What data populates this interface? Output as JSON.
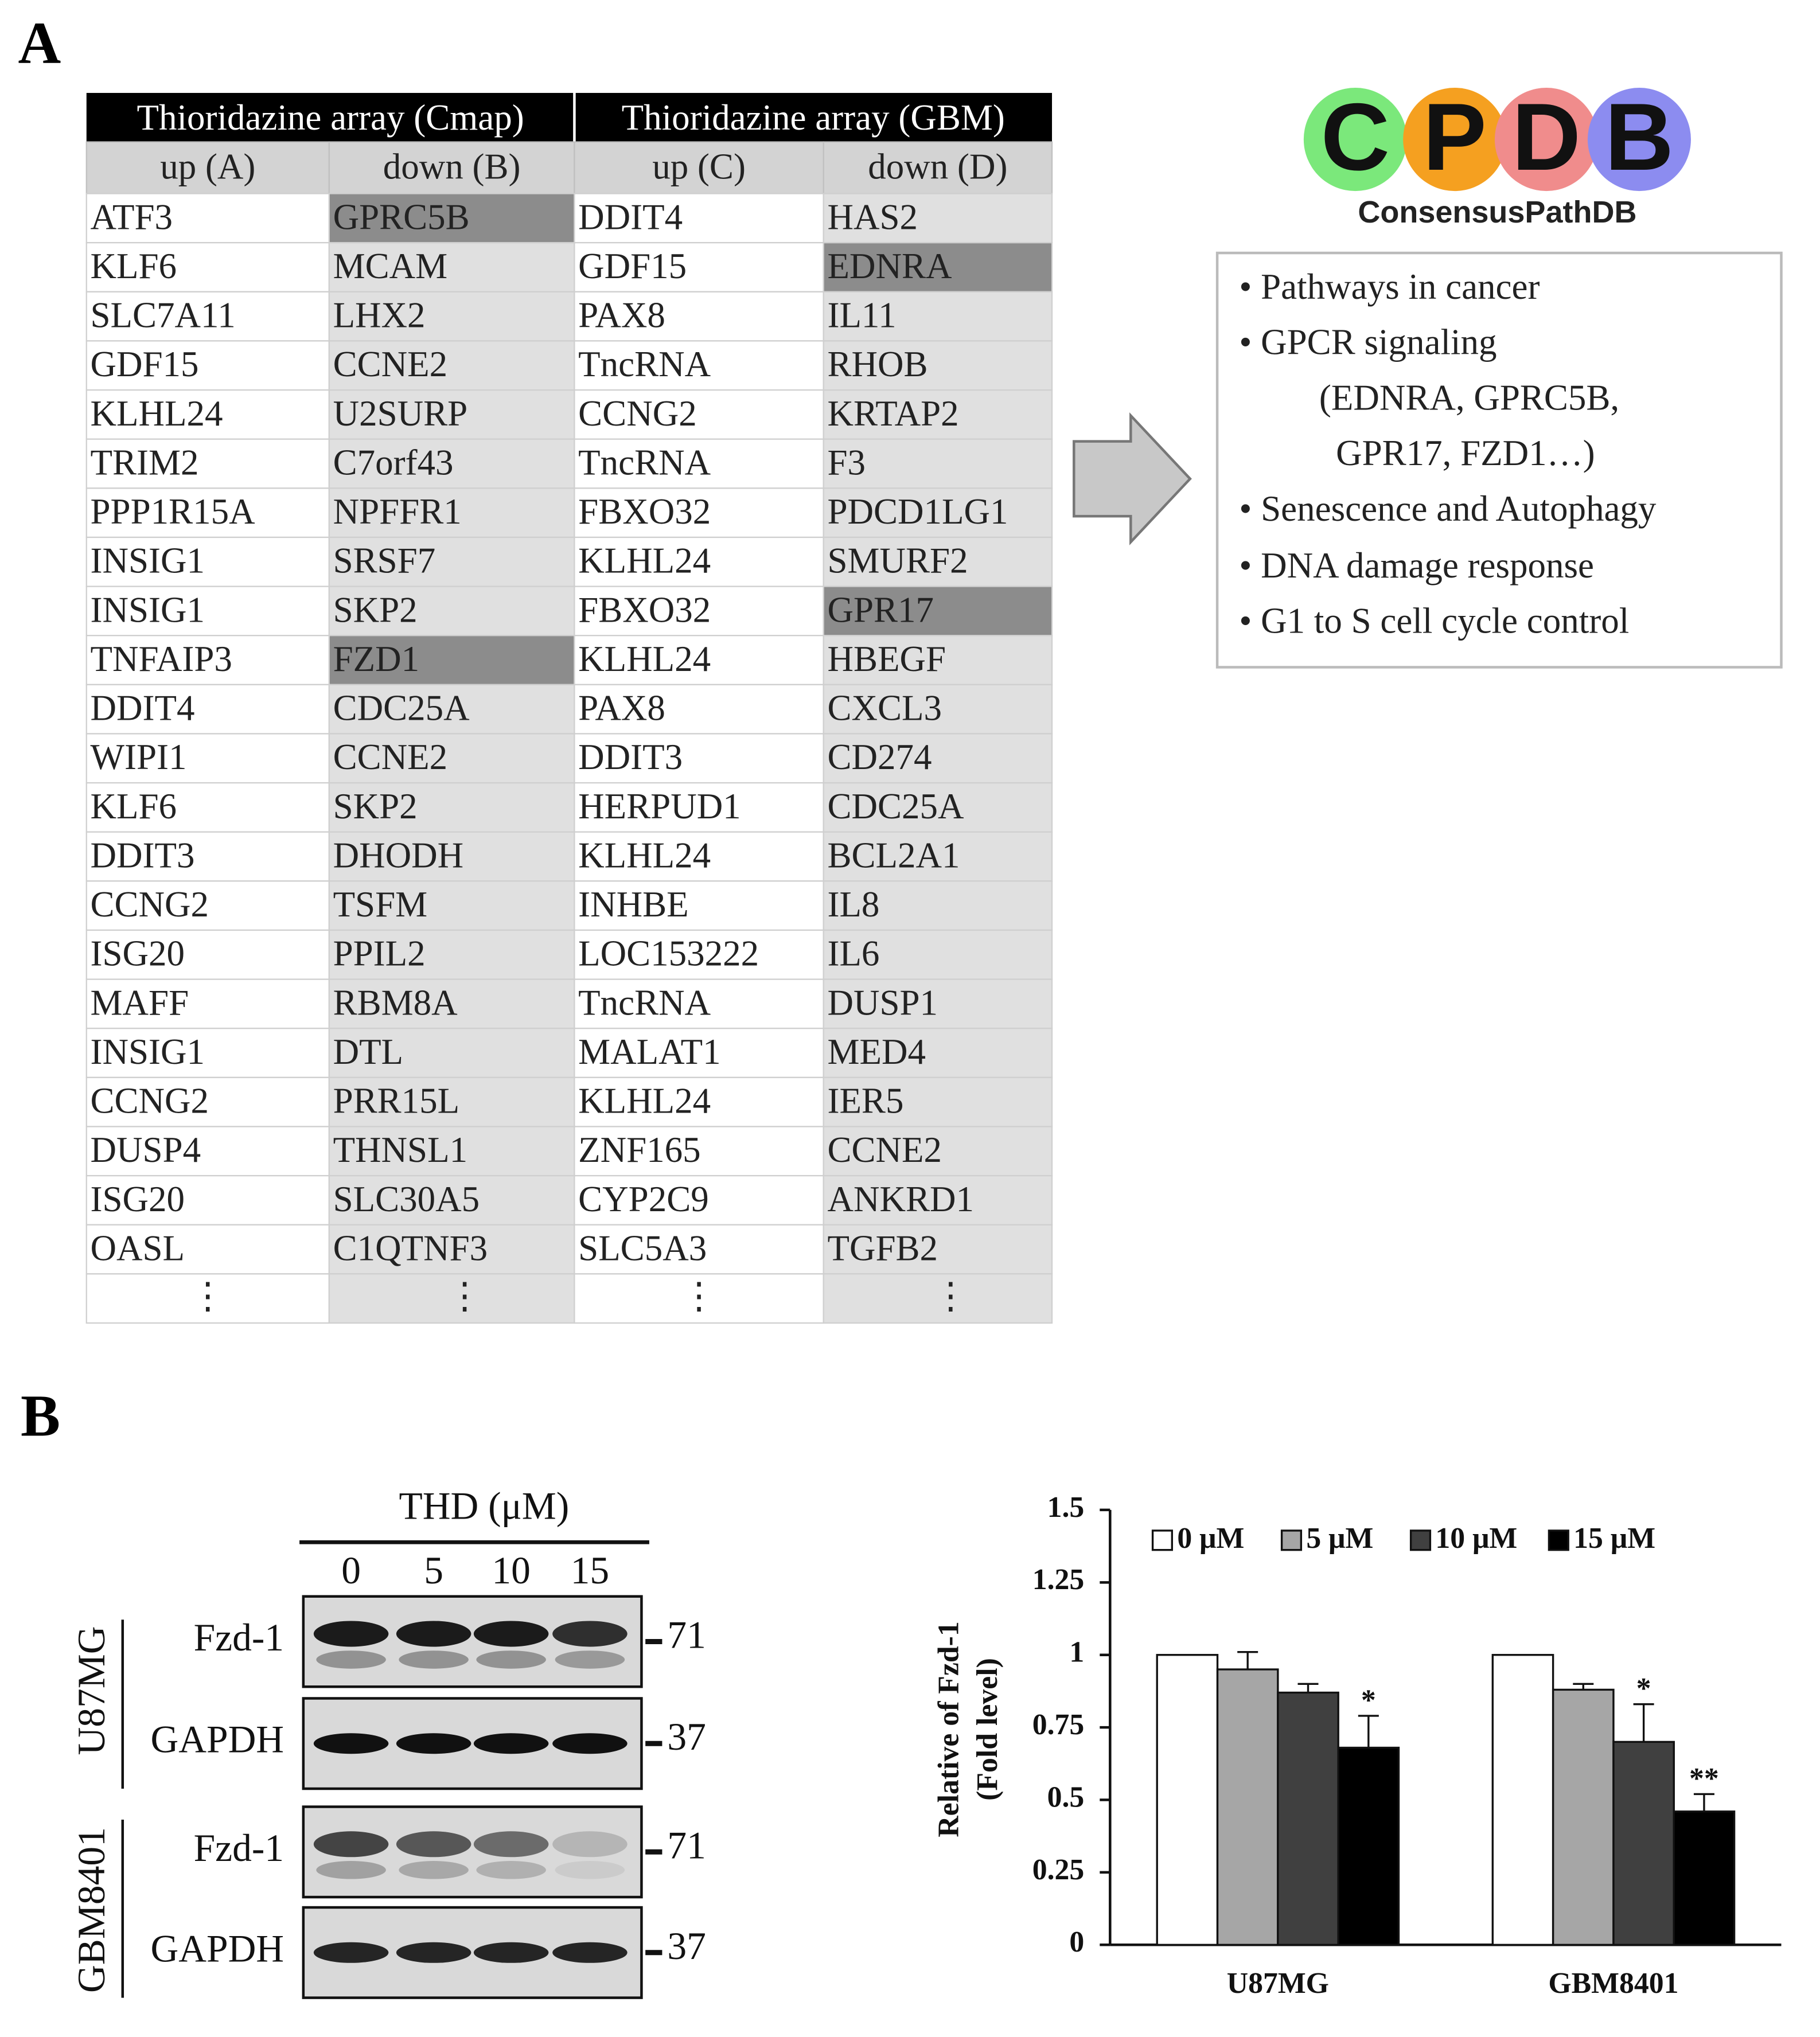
{
  "panel_a": {
    "label": "A",
    "table": {
      "headers": [
        "Thioridazine array (Cmap)",
        "Thioridazine array (GBM)"
      ],
      "more": "⋮",
      "highlight_color": "#8c8c8c",
      "columns": [
        {
          "title": "up (A)",
          "color": "#ffffff",
          "genes": [
            "ATF3",
            "KLF6",
            "SLC7A11",
            "GDF15",
            "KLHL24",
            "TRIM2",
            "PPP1R15A",
            "INSIG1",
            "INSIG1",
            "TNFAIP3",
            "DDIT4",
            "WIPI1",
            "KLF6",
            "DDIT3",
            "CCNG2",
            "ISG20",
            "MAFF",
            "INSIG1",
            "CCNG2",
            "DUSP4",
            "ISG20",
            "OASL"
          ],
          "highlighted": []
        },
        {
          "title": "down (B)",
          "color": "#e0e0e0",
          "genes": [
            "GPRC5B",
            "MCAM",
            "LHX2",
            "CCNE2",
            "U2SURP",
            "C7orf43",
            "NPFFR1",
            "SRSF7",
            "SKP2",
            "FZD1",
            "CDC25A",
            "CCNE2",
            "SKP2",
            "DHODH",
            "TSFM",
            "PPIL2",
            "RBM8A",
            "DTL",
            "PRR15L",
            "THNSL1",
            "SLC30A5",
            "C1QTNF3"
          ],
          "highlighted": [
            "GPRC5B",
            "FZD1"
          ]
        },
        {
          "title": "up (C)",
          "color": "#ffffff",
          "genes": [
            "DDIT4",
            "GDF15",
            "PAX8",
            "TncRNA",
            "CCNG2",
            "TncRNA",
            "FBXO32",
            "KLHL24",
            "FBXO32",
            "KLHL24",
            "PAX8",
            "DDIT3",
            "HERPUD1",
            "KLHL24",
            "INHBE",
            "LOC153222",
            "TncRNA",
            "MALAT1",
            "KLHL24",
            "ZNF165",
            "CYP2C9",
            "SLC5A3"
          ],
          "highlighted": []
        },
        {
          "title": "down (D)",
          "color": "#e0e0e0",
          "genes": [
            "HAS2",
            "EDNRA",
            "IL11",
            "RHOB",
            "KRTAP2",
            "F3",
            "PDCD1LG1",
            "SMURF2",
            "GPR17",
            "HBEGF",
            "CXCL3",
            "CD274",
            "CDC25A",
            "BCL2A1",
            "IL8",
            "IL6",
            "DUSP1",
            "MED4",
            "IER5",
            "CCNE2",
            "ANKRD1",
            "TGFB2"
          ],
          "highlighted": [
            "EDNRA",
            "GPR17"
          ]
        }
      ]
    },
    "cpdb": {
      "logo": [
        {
          "letter": "C",
          "color": "#7be87b"
        },
        {
          "letter": "P",
          "color": "#f5a020"
        },
        {
          "letter": "D",
          "color": "#f08c8c"
        },
        {
          "letter": "B",
          "color": "#8c8cf0"
        }
      ],
      "name": "ConsensusPathDB",
      "items": [
        "• Pathways in cancer",
        "• GPCR signaling",
        "(EDNRA, GPRC5B,",
        "GPR17, FZD1…)",
        "• Senescence and Autophagy",
        "• DNA damage response",
        "• G1 to S cell cycle control"
      ]
    }
  },
  "panel_b": {
    "label": "B",
    "blot": {
      "title": "THD (μM)",
      "lanes": [
        "0",
        "5",
        "10",
        "15"
      ],
      "cell_lines": [
        {
          "name": "U87MG",
          "rows": [
            {
              "protein": "Fzd-1",
              "marker": "71"
            },
            {
              "protein": "GAPDH",
              "marker": "37"
            }
          ]
        },
        {
          "name": "GBM8401",
          "rows": [
            {
              "protein": "Fzd-1",
              "marker": "71"
            },
            {
              "protein": "GAPDH",
              "marker": "37"
            }
          ]
        }
      ]
    }
  },
  "chart_data": {
    "type": "bar",
    "ylabel": [
      "Relative of Fzd-1",
      "(Fold level)"
    ],
    "categories": [
      "U87MG",
      "GBM8401"
    ],
    "series": [
      {
        "name": "0 μM",
        "color": "#ffffff",
        "values": [
          1,
          1
        ],
        "errors": [
          null,
          null
        ],
        "marks": [
          null,
          null
        ]
      },
      {
        "name": "5 μM",
        "color": "#a6a6a6",
        "values": [
          0.95,
          0.88
        ],
        "errors": [
          0.06,
          0.02
        ],
        "marks": [
          null,
          null
        ]
      },
      {
        "name": "10 μM",
        "color": "#404040",
        "values": [
          0.87,
          0.7
        ],
        "errors": [
          0.03,
          0.13
        ],
        "marks": [
          null,
          "*"
        ]
      },
      {
        "name": "15 μM",
        "color": "#000000",
        "values": [
          0.68,
          0.46
        ],
        "errors": [
          0.11,
          0.06
        ],
        "marks": [
          "*",
          "**"
        ]
      }
    ],
    "ylim": [
      0,
      1.5
    ],
    "yticks": [
      0,
      0.25,
      0.5,
      0.75,
      1,
      1.25,
      1.5
    ],
    "legend": "top",
    "grid": false
  }
}
